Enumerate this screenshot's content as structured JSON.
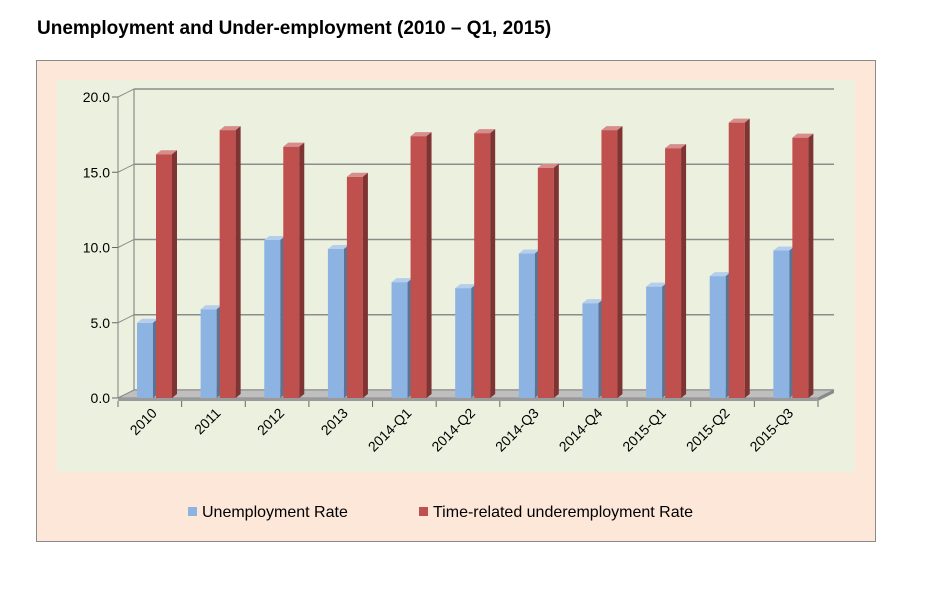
{
  "title": "Unemployment and Under-employment (2010 – Q1, 2015)",
  "chart_data": {
    "type": "bar",
    "categories": [
      "2010",
      "2011",
      "2012",
      "2013",
      "2014-Q1",
      "2014-Q2",
      "2014-Q3",
      "2014-Q4",
      "2015-Q1",
      "2015-Q2",
      "2015-Q3"
    ],
    "series": [
      {
        "name": "Unemployment Rate",
        "color": "#8db3e2",
        "values": [
          5.0,
          5.9,
          10.5,
          9.9,
          7.7,
          7.3,
          9.6,
          6.3,
          7.4,
          8.1,
          9.8
        ]
      },
      {
        "name": "Time-related underemployment Rate",
        "color": "#c0504d",
        "values": [
          16.2,
          17.8,
          16.7,
          14.7,
          17.4,
          17.6,
          15.3,
          17.8,
          16.6,
          18.3,
          17.3
        ]
      }
    ],
    "yticks": [
      "0.0",
      "5.0",
      "10.0",
      "15.0",
      "20.0"
    ],
    "ylim": [
      0,
      20
    ],
    "grid": true,
    "legend_position": "bottom",
    "plot_background": "#ebf1de"
  }
}
